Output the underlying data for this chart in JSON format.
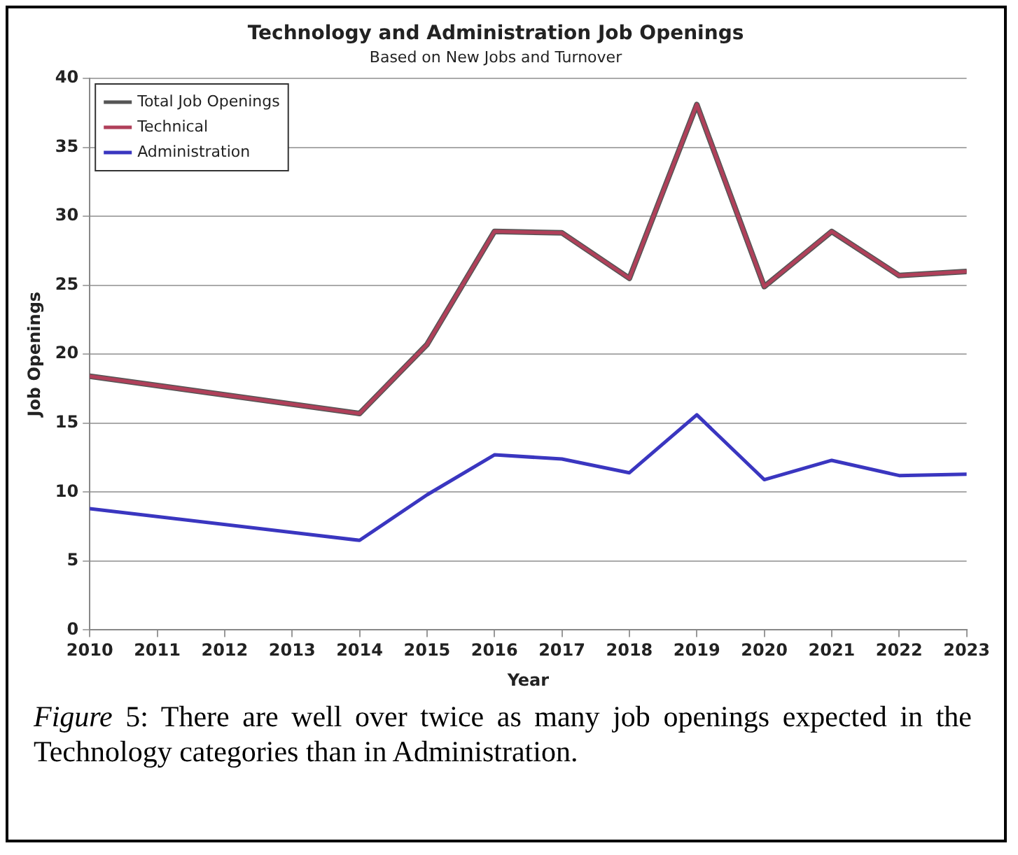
{
  "chart_data": {
    "type": "line",
    "title": "Technology and Administration Job Openings",
    "subtitle": "Based on New Jobs and Turnover",
    "xlabel": "Year",
    "ylabel": "Job Openings",
    "x": [
      2010,
      2014,
      2015,
      2016,
      2017,
      2018,
      2019,
      2020,
      2021,
      2022,
      2023
    ],
    "series": [
      {
        "name": "Total Job Openings",
        "color": "#555555",
        "values": [
          18.4,
          15.7,
          20.7,
          28.9,
          28.8,
          25.5,
          38.1,
          24.9,
          28.9,
          25.7,
          26.0
        ]
      },
      {
        "name": "Technical",
        "color": "#b0405a",
        "values": [
          18.4,
          15.7,
          20.7,
          28.9,
          28.8,
          25.5,
          38.1,
          24.9,
          28.9,
          25.7,
          26.0
        ]
      },
      {
        "name": "Administration",
        "color": "#3a36c0",
        "values": [
          8.8,
          6.5,
          9.8,
          12.7,
          12.4,
          11.4,
          15.6,
          10.9,
          12.3,
          11.2,
          11.3
        ]
      }
    ],
    "xlim": [
      2010,
      2023
    ],
    "xticks": [
      2010,
      2011,
      2012,
      2013,
      2014,
      2015,
      2016,
      2017,
      2018,
      2019,
      2020,
      2021,
      2022,
      2023
    ],
    "ylim": [
      0,
      40
    ],
    "yticks": [
      0,
      5,
      10,
      15,
      20,
      25,
      30,
      35,
      40
    ],
    "grid": "y",
    "legend": "top left",
    "marker": "none",
    "line_style": "solid",
    "annotations": [
      "Figure 5: There are well over twice as many job openings expected in the Technology categories than in Administration."
    ]
  }
}
